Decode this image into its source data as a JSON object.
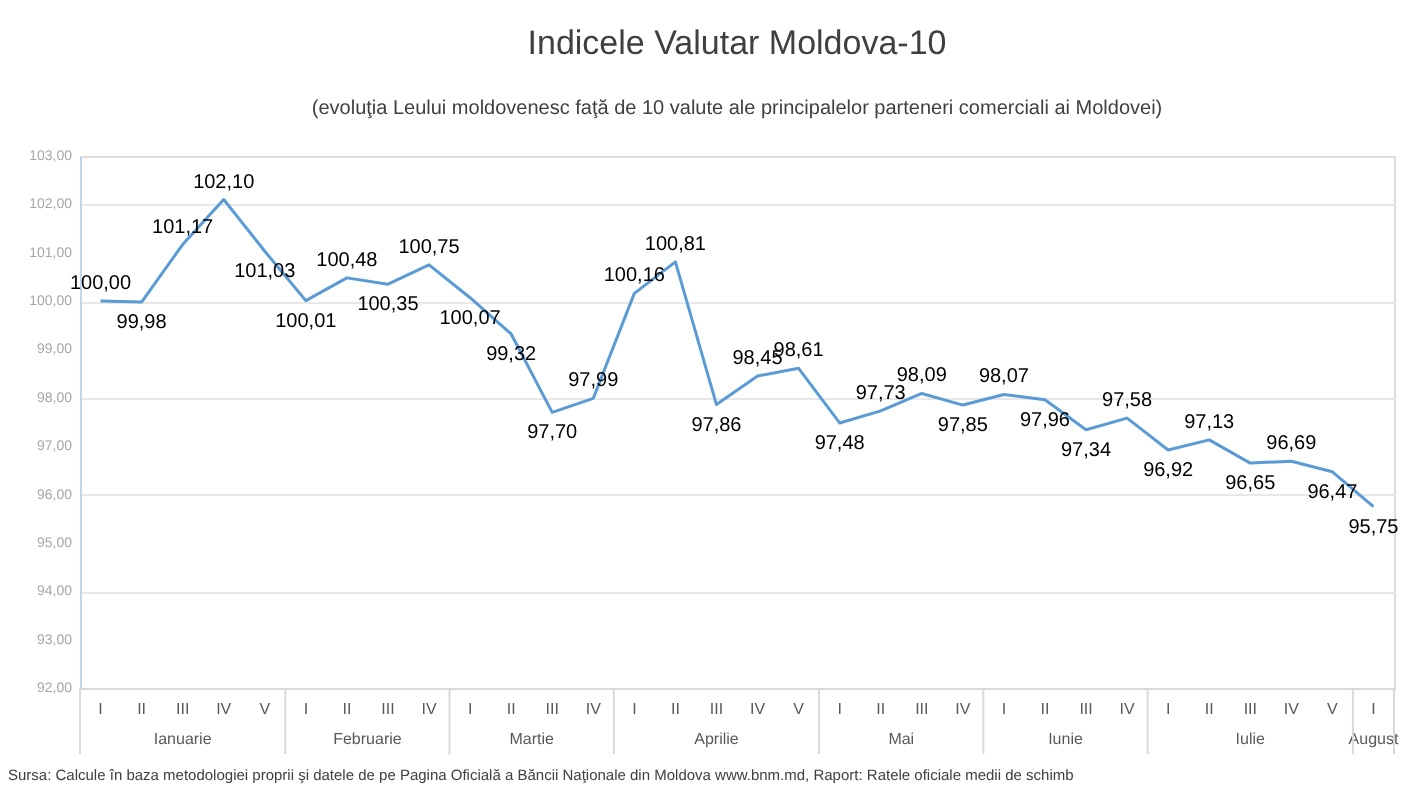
{
  "chart_data": {
    "type": "line",
    "title": "Indicele Valutar Moldova-10",
    "subtitle": "(evoluţia Leului moldovenesc faţă de 10 valute ale principalelor parteneri comerciali ai Moldovei)",
    "categories": [
      "I",
      "II",
      "III",
      "IV",
      "V",
      "I",
      "II",
      "III",
      "IV",
      "I",
      "II",
      "III",
      "IV",
      "I",
      "II",
      "III",
      "IV",
      "V",
      "I",
      "II",
      "III",
      "IV",
      "I",
      "II",
      "III",
      "IV",
      "I",
      "II",
      "III",
      "IV",
      "V",
      "I"
    ],
    "series": [
      {
        "color": "#5b9bd5",
        "values": [
          100.0,
          99.98,
          101.17,
          102.1,
          101.03,
          100.01,
          100.48,
          100.35,
          100.75,
          100.07,
          99.32,
          97.7,
          97.99,
          100.16,
          100.81,
          97.86,
          98.45,
          98.61,
          97.48,
          97.73,
          98.09,
          97.85,
          98.07,
          97.96,
          97.34,
          97.58,
          96.92,
          97.13,
          96.65,
          96.69,
          96.47,
          95.75
        ],
        "value_labels": [
          "100,00",
          "99,98",
          "101,17",
          "102,10",
          "101,03",
          "100,01",
          "100,48",
          "100,35",
          "100,75",
          "100,07",
          "99,32",
          "97,70",
          "97,99",
          "100,16",
          "100,81",
          "97,86",
          "98,45",
          "98,61",
          "97,48",
          "97,73",
          "98,09",
          "97,85",
          "98,07",
          "97,96",
          "97,34",
          "97,58",
          "96,92",
          "97,13",
          "96,65",
          "96,69",
          "96,47",
          "95,75"
        ]
      }
    ],
    "ylim": [
      92,
      103
    ],
    "yticks": [
      {
        "value": 92,
        "label": "92,00"
      },
      {
        "value": 93,
        "label": "93,00"
      },
      {
        "value": 94,
        "label": "94,00"
      },
      {
        "value": 95,
        "label": "95,00"
      },
      {
        "value": 96,
        "label": "96,00"
      },
      {
        "value": 97,
        "label": "97,00"
      },
      {
        "value": 98,
        "label": "98,00"
      },
      {
        "value": 99,
        "label": "99,00"
      },
      {
        "value": 100,
        "label": "100,00"
      },
      {
        "value": 101,
        "label": "101,00"
      },
      {
        "value": 102,
        "label": "102,00"
      },
      {
        "value": 103,
        "label": "103,00"
      }
    ],
    "grid": "y",
    "annotations": [
      "Ianuarie",
      "Februarie",
      "Martie",
      "Aprilie",
      "Mai",
      "Iunie",
      "Iulie",
      "August",
      "Sursa: Calcule în baza metodologiei proprii şi datele de pe Pagina Oficială a Băncii Naţionale din Moldova www.bnm.md, Raport: Ratele oficiale medii de schimb"
    ]
  }
}
